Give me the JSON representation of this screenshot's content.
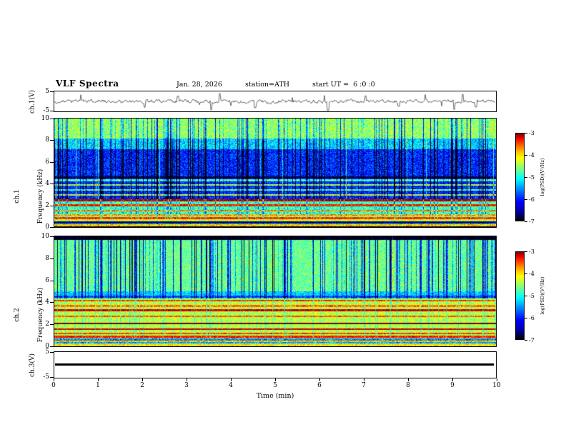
{
  "header": {
    "title": "VLF Spectra",
    "date": "Jan. 28, 2026",
    "station": "station=ATH",
    "start_ut": "start UT =  6 :0 :0"
  },
  "panels": {
    "wave1": {
      "ylabel": "ch.1(V)"
    },
    "spec1": {
      "ylabel_ch": "ch.1",
      "ylabel_freq": "Frequency (kHz)"
    },
    "spec2": {
      "ylabel_ch": "ch.2",
      "ylabel_freq": "Frequency (kHz)"
    },
    "wave3": {
      "ylabel": "ch.3(V)"
    }
  },
  "axes": {
    "time": {
      "label": "Time (min)",
      "ticks": [
        "0",
        "1",
        "2",
        "3",
        "4",
        "5",
        "6",
        "7",
        "8",
        "9",
        "10"
      ]
    },
    "freq_ticks": [
      "10",
      "8",
      "6",
      "4",
      "2",
      "0"
    ],
    "volt_top": "5",
    "volt_bottom": "-5"
  },
  "colorbar": {
    "label": "log(PSD)(V²/Hz)",
    "ticks": [
      "-3",
      "-4",
      "-5",
      "-6",
      "-7"
    ],
    "gradient": [
      "#7f0000 0%",
      "#e60000 5%",
      "#ff4c00 12%",
      "#ffb300 20%",
      "#ffff00 28%",
      "#80ff80 40%",
      "#00ffff 52%",
      "#0080ff 65%",
      "#0000ff 78%",
      "#0000a0 90%",
      "#000000 100%"
    ]
  },
  "chart_data": [
    {
      "type": "line",
      "title": "ch.1(V) broadband waveform",
      "xlabel": "Time (min)",
      "ylabel": "ch.1(V)",
      "xlim": [
        0,
        10
      ],
      "ylim": [
        -5,
        5
      ],
      "series_summary": "Continuous noise of roughly ±1 V centered on 0 V with ~20 impulsive sferic spikes reaching toward ±5 V, clustered near 3.5, 4.5, 6.2 and 9.1 min"
    },
    {
      "type": "heatmap",
      "title": "ch.1 dynamic spectrum",
      "xlabel": "Time (min)",
      "ylabel": "Frequency (kHz)",
      "xlim": [
        0,
        10
      ],
      "ylim": [
        0,
        10
      ],
      "colorbar_label": "log(PSD)(V²/Hz)",
      "zlim": [
        -7,
        -3
      ],
      "features": [
        "blue background near -6 between ~2.5 and 8 kHz",
        "green background near -4.8 above 8 kHz",
        "dense vertical broadband impulse streaks (dark blue, approaching -7) across all frequencies",
        "occasional bright green full-height vertical streaks",
        "bright horizontal power-line harmonic lines near 0.85, 1.15, 1.55, 2.05, 2.5, 3.0, 3.45, 3.9 and 4.35 kHz reaching -4.5 to -4 (yellow/orange)",
        "bright band near -4.3 below 1 kHz with a dark row near 0.45 kHz and a black strip below ~0.15 kHz"
      ]
    },
    {
      "type": "heatmap",
      "title": "ch.2 dynamic spectrum",
      "xlabel": "Time (min)",
      "ylabel": "Frequency (kHz)",
      "xlim": [
        0,
        10
      ],
      "ylim": [
        0,
        10
      ],
      "colorbar_label": "log(PSD)(V²/Hz)",
      "zlim": [
        -7,
        -3
      ],
      "features": [
        "green background near -4.9 over most of the band",
        "vertical dark-blue impulse streaks concentrated above ~5 kHz",
        "strong horizontal harmonic lines near 0.9, 1.2, 1.6, 2.75, 3.3, 3.7 and 4.2 kHz; line near 2.1 kHz is orange-red (~-3.5)",
        "bright yellow-green rows below ~0.5 kHz with a dark row near 0.65 kHz",
        "black strip at the very top of the band (~9.7-10 kHz)"
      ]
    },
    {
      "type": "line",
      "title": "ch.3(V) waveform",
      "xlabel": "Time (min)",
      "ylabel": "ch.3(V)",
      "xlim": [
        0,
        10
      ],
      "ylim": [
        -5,
        5
      ],
      "series_summary": "Flat thick trace at ~0 V for the entire 10 minute interval (channel inactive)"
    }
  ]
}
